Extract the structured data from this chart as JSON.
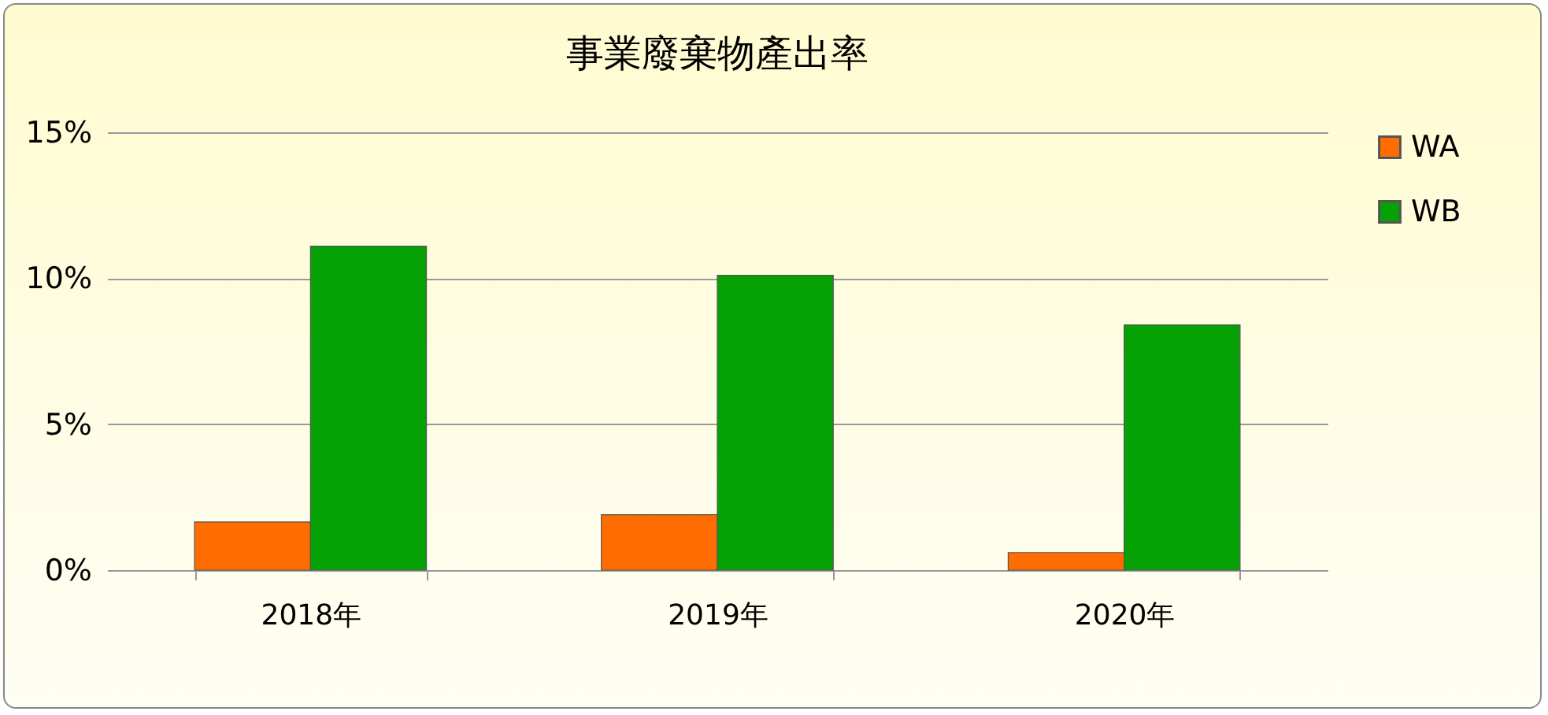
{
  "chart_data": {
    "type": "bar",
    "title": "事業廢棄物產出率",
    "categories": [
      "2018年",
      "2019年",
      "2020年"
    ],
    "series": [
      {
        "name": "WA",
        "color": "#ff6d00",
        "values": [
          1.65,
          1.9,
          0.6
        ]
      },
      {
        "name": "WB",
        "color": "#05a105",
        "values": [
          11.1,
          10.1,
          8.4
        ]
      }
    ],
    "ylim": [
      0,
      15
    ],
    "yticks": [
      {
        "value": 0,
        "label": "0%"
      },
      {
        "value": 5,
        "label": "5%"
      },
      {
        "value": 10,
        "label": "10%"
      },
      {
        "value": 15,
        "label": "15%"
      }
    ],
    "grid": "y",
    "legend": "right"
  }
}
